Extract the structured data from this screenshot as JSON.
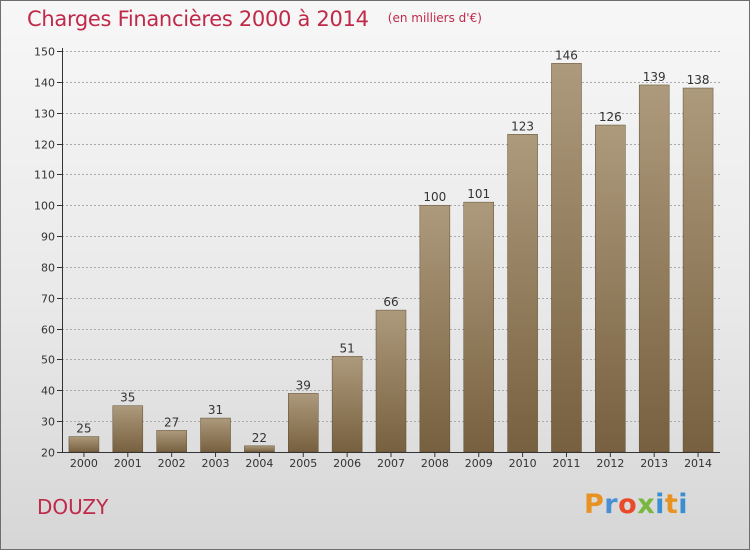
{
  "header": {
    "title": "Charges Financières 2000 à 2014",
    "unit": "(en milliers d'€)"
  },
  "commune": "DOUZY",
  "logo": {
    "text": "Proxiti",
    "letters": [
      "P",
      "r",
      "o",
      "x",
      "i",
      "t",
      "i"
    ]
  },
  "colors": {
    "title": "#c0294a",
    "bar_top": "#ad9a7c",
    "bar_bottom": "#77603f",
    "axis": "#333333",
    "grid": "#aaaaaa"
  },
  "chart_data": {
    "type": "bar",
    "title": "Charges Financières 2000 à 2014",
    "subtitle": "(en milliers d'€)",
    "categories": [
      "2000",
      "2001",
      "2002",
      "2003",
      "2004",
      "2005",
      "2006",
      "2007",
      "2008",
      "2009",
      "2010",
      "2011",
      "2012",
      "2013",
      "2014"
    ],
    "values": [
      25,
      35,
      27,
      31,
      22,
      39,
      51,
      66,
      100,
      101,
      123,
      146,
      126,
      139,
      138
    ],
    "ylim": [
      20,
      150
    ],
    "yticks": [
      20,
      30,
      40,
      50,
      60,
      70,
      80,
      90,
      100,
      110,
      120,
      130,
      140,
      150
    ],
    "grid": true,
    "data_labels": true
  }
}
